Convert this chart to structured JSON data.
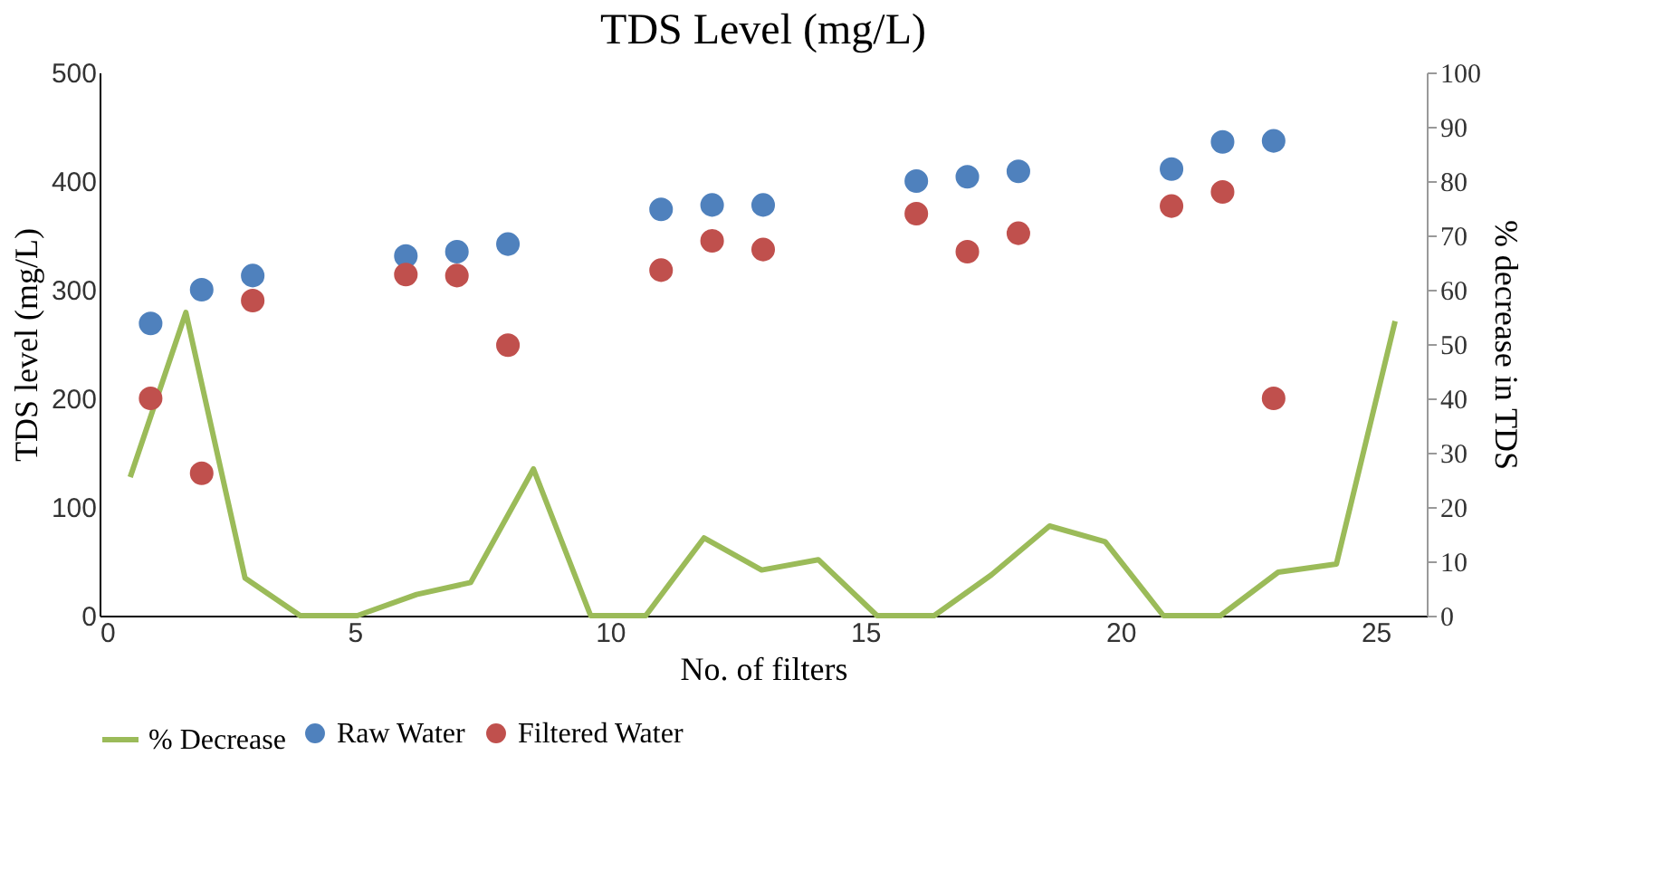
{
  "chart_data": {
    "type": "scatter",
    "title": "TDS Level (mg/L)",
    "xlabel": "No. of filters",
    "ylabel": "TDS level (mg/L)",
    "y2label": "% decrease in TDS",
    "xlim": [
      0,
      26
    ],
    "xticks": [
      0,
      5,
      10,
      15,
      20,
      25
    ],
    "ylim": [
      0,
      500
    ],
    "yticks": [
      0,
      100,
      200,
      300,
      400,
      500
    ],
    "y2lim": [
      0,
      100
    ],
    "y2ticks": [
      0,
      10,
      20,
      30,
      40,
      50,
      60,
      70,
      80,
      90,
      100
    ],
    "grid": false,
    "legend": "bottom",
    "marker": "circle",
    "series": [
      {
        "name": "% Decrease",
        "type": "line",
        "axis": "y2",
        "color": "#9bbb59",
        "marker": "none",
        "line_style": "solid",
        "x": [
          0.6,
          1.69,
          2.85,
          3.93,
          5.05,
          6.21,
          7.27,
          8.5,
          9.62,
          10.7,
          11.84,
          12.97,
          14.08,
          15.23,
          16.35,
          17.47,
          18.61,
          19.7,
          20.84,
          21.96,
          23.09,
          24.23,
          25.38
        ],
        "values": [
          25.5,
          55.8,
          6.9,
          0,
          0,
          3.9,
          6.1,
          27,
          0,
          0,
          14.3,
          8.4,
          10.3,
          0,
          0,
          7.5,
          16.5,
          13.6,
          0,
          0,
          8,
          9.5,
          54.2
        ]
      },
      {
        "name": "Raw Water",
        "color": "#4f81bd",
        "x": [
          1,
          2,
          3,
          6,
          7,
          8,
          11,
          12,
          13,
          16,
          17,
          18,
          21,
          22,
          23
        ],
        "values": [
          269,
          300,
          313,
          331,
          335,
          342,
          374,
          378,
          378,
          400,
          404,
          409,
          411,
          436,
          437
        ]
      },
      {
        "name": "Filtered Water",
        "color": "#c0504d",
        "x": [
          1,
          2,
          3,
          6,
          7,
          8,
          11,
          12,
          13,
          16,
          17,
          18,
          21,
          22,
          23
        ],
        "values": [
          200,
          131,
          290,
          314,
          313,
          249,
          318,
          345,
          337,
          370,
          335,
          352,
          377,
          390,
          200
        ]
      }
    ]
  }
}
